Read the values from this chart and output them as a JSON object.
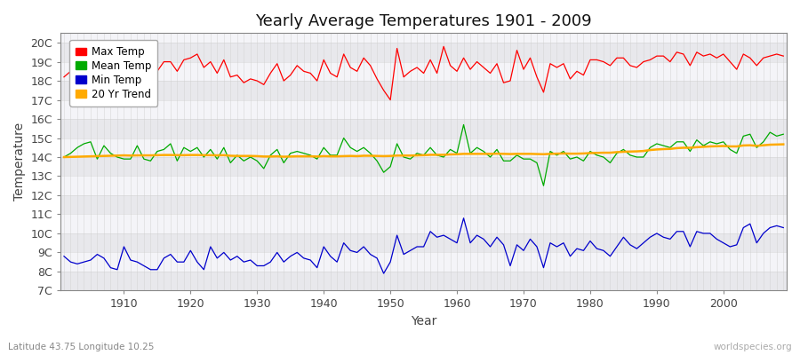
{
  "title": "Yearly Average Temperatures 1901 - 2009",
  "xlabel": "Year",
  "ylabel": "Temperature",
  "lat_lon_text": "Latitude 43.75 Longitude 10.25",
  "worldspecies_text": "worldspecies.org",
  "year_start": 1901,
  "year_end": 2009,
  "yticks": [
    "7C",
    "8C",
    "9C",
    "10C",
    "11C",
    "12C",
    "13C",
    "14C",
    "15C",
    "16C",
    "17C",
    "18C",
    "19C",
    "20C"
  ],
  "ytick_vals": [
    7,
    8,
    9,
    10,
    11,
    12,
    13,
    14,
    15,
    16,
    17,
    18,
    19,
    20
  ],
  "ylim": [
    7,
    20.5
  ],
  "xticks": [
    1910,
    1920,
    1930,
    1940,
    1950,
    1960,
    1970,
    1980,
    1990,
    2000
  ],
  "line_colors": {
    "max": "#ff0000",
    "mean": "#00aa00",
    "min": "#0000cc",
    "trend": "#ffaa00"
  },
  "legend_labels": [
    "Max Temp",
    "Mean Temp",
    "Min Temp",
    "20 Yr Trend"
  ],
  "bg_color": "#ffffff",
  "plot_bg_color": "#ffffff",
  "stripe_color_dark": "#e8e8ec",
  "stripe_color_light": "#f4f4f8",
  "grid_color": "#cccccc",
  "max_temps": [
    18.2,
    18.5,
    18.8,
    19.4,
    19.3,
    18.9,
    19.3,
    18.7,
    18.4,
    18.4,
    18.3,
    18.6,
    19.5,
    19.2,
    18.5,
    19.0,
    19.0,
    18.5,
    19.1,
    19.2,
    19.4,
    18.7,
    19.0,
    18.4,
    19.1,
    18.2,
    18.3,
    17.9,
    18.1,
    18.0,
    17.8,
    18.4,
    18.9,
    18.0,
    18.3,
    18.8,
    18.5,
    18.4,
    18.0,
    19.1,
    18.4,
    18.2,
    19.4,
    18.7,
    18.5,
    19.2,
    18.8,
    18.1,
    17.5,
    17.0,
    19.7,
    18.2,
    18.5,
    18.7,
    18.4,
    19.1,
    18.4,
    19.8,
    18.8,
    18.5,
    19.2,
    18.6,
    19.0,
    18.7,
    18.4,
    18.9,
    17.9,
    18.0,
    19.6,
    18.6,
    19.2,
    18.2,
    17.4,
    18.9,
    18.7,
    18.9,
    18.1,
    18.5,
    18.3,
    19.1,
    19.1,
    19.0,
    18.8,
    19.2,
    19.2,
    18.8,
    18.7,
    19.0,
    19.1,
    19.3,
    19.3,
    19.0,
    19.5,
    19.4,
    18.8,
    19.5,
    19.3,
    19.4,
    19.2,
    19.4,
    19.0,
    18.6,
    19.4,
    19.2,
    18.8,
    19.2,
    19.3,
    19.4,
    19.3
  ],
  "mean_temps": [
    14.0,
    14.2,
    14.5,
    14.7,
    14.8,
    13.9,
    14.6,
    14.2,
    14.0,
    13.9,
    13.9,
    14.6,
    13.9,
    13.8,
    14.3,
    14.4,
    14.7,
    13.8,
    14.5,
    14.3,
    14.5,
    14.0,
    14.4,
    13.9,
    14.5,
    13.7,
    14.1,
    13.8,
    14.0,
    13.8,
    13.4,
    14.1,
    14.4,
    13.7,
    14.2,
    14.3,
    14.2,
    14.1,
    13.9,
    14.5,
    14.1,
    14.1,
    15.0,
    14.5,
    14.3,
    14.5,
    14.2,
    13.8,
    13.2,
    13.5,
    14.7,
    14.0,
    13.9,
    14.2,
    14.1,
    14.5,
    14.1,
    14.0,
    14.4,
    14.2,
    15.7,
    14.2,
    14.5,
    14.3,
    14.0,
    14.4,
    13.8,
    13.8,
    14.1,
    13.9,
    13.9,
    13.7,
    12.5,
    14.3,
    14.1,
    14.3,
    13.9,
    14.0,
    13.8,
    14.3,
    14.1,
    14.0,
    13.7,
    14.2,
    14.4,
    14.1,
    14.0,
    14.0,
    14.5,
    14.7,
    14.6,
    14.5,
    14.8,
    14.8,
    14.3,
    14.9,
    14.6,
    14.8,
    14.7,
    14.8,
    14.4,
    14.2,
    15.1,
    15.2,
    14.5,
    14.8,
    15.3,
    15.1,
    15.2
  ],
  "min_temps": [
    8.8,
    8.5,
    8.4,
    8.5,
    8.6,
    8.9,
    8.7,
    8.2,
    8.1,
    9.3,
    8.6,
    8.5,
    8.3,
    8.1,
    8.1,
    8.7,
    8.9,
    8.5,
    8.5,
    9.1,
    8.5,
    8.1,
    9.3,
    8.7,
    9.0,
    8.6,
    8.8,
    8.5,
    8.6,
    8.3,
    8.3,
    8.5,
    9.0,
    8.5,
    8.8,
    9.0,
    8.7,
    8.6,
    8.2,
    9.3,
    8.8,
    8.5,
    9.5,
    9.1,
    9.0,
    9.3,
    8.9,
    8.7,
    7.9,
    8.5,
    9.9,
    8.9,
    9.1,
    9.3,
    9.3,
    10.1,
    9.8,
    9.9,
    9.7,
    9.5,
    10.8,
    9.5,
    9.9,
    9.7,
    9.3,
    9.8,
    9.4,
    8.3,
    9.4,
    9.1,
    9.7,
    9.3,
    8.2,
    9.5,
    9.3,
    9.5,
    8.8,
    9.2,
    9.1,
    9.6,
    9.2,
    9.1,
    8.8,
    9.3,
    9.8,
    9.4,
    9.2,
    9.5,
    9.8,
    10.0,
    9.8,
    9.7,
    10.1,
    10.1,
    9.3,
    10.1,
    10.0,
    10.0,
    9.7,
    9.5,
    9.3,
    9.4,
    10.3,
    10.5,
    9.5,
    10.0,
    10.3,
    10.4,
    10.3
  ],
  "trend_temps": [
    14.0,
    14.01,
    14.02,
    14.03,
    14.04,
    14.05,
    14.06,
    14.07,
    14.08,
    14.09,
    14.08,
    14.09,
    14.09,
    14.09,
    14.1,
    14.11,
    14.11,
    14.1,
    14.1,
    14.11,
    14.11,
    14.1,
    14.1,
    14.09,
    14.1,
    14.07,
    14.06,
    14.06,
    14.06,
    14.05,
    14.03,
    14.03,
    14.04,
    14.02,
    14.03,
    14.04,
    14.04,
    14.04,
    14.03,
    14.05,
    14.04,
    14.04,
    14.05,
    14.06,
    14.05,
    14.07,
    14.07,
    14.06,
    14.05,
    14.06,
    14.08,
    14.08,
    14.08,
    14.09,
    14.1,
    14.12,
    14.12,
    14.12,
    14.14,
    14.15,
    14.17,
    14.17,
    14.17,
    14.17,
    14.17,
    14.18,
    14.17,
    14.16,
    14.17,
    14.17,
    14.17,
    14.16,
    14.15,
    14.17,
    14.18,
    14.19,
    14.18,
    14.18,
    14.19,
    14.21,
    14.22,
    14.23,
    14.23,
    14.26,
    14.28,
    14.29,
    14.3,
    14.32,
    14.37,
    14.4,
    14.42,
    14.43,
    14.47,
    14.49,
    14.49,
    14.52,
    14.54,
    14.56,
    14.57,
    14.58,
    14.56,
    14.56,
    14.61,
    14.62,
    14.59,
    14.62,
    14.65,
    14.66,
    14.67
  ]
}
